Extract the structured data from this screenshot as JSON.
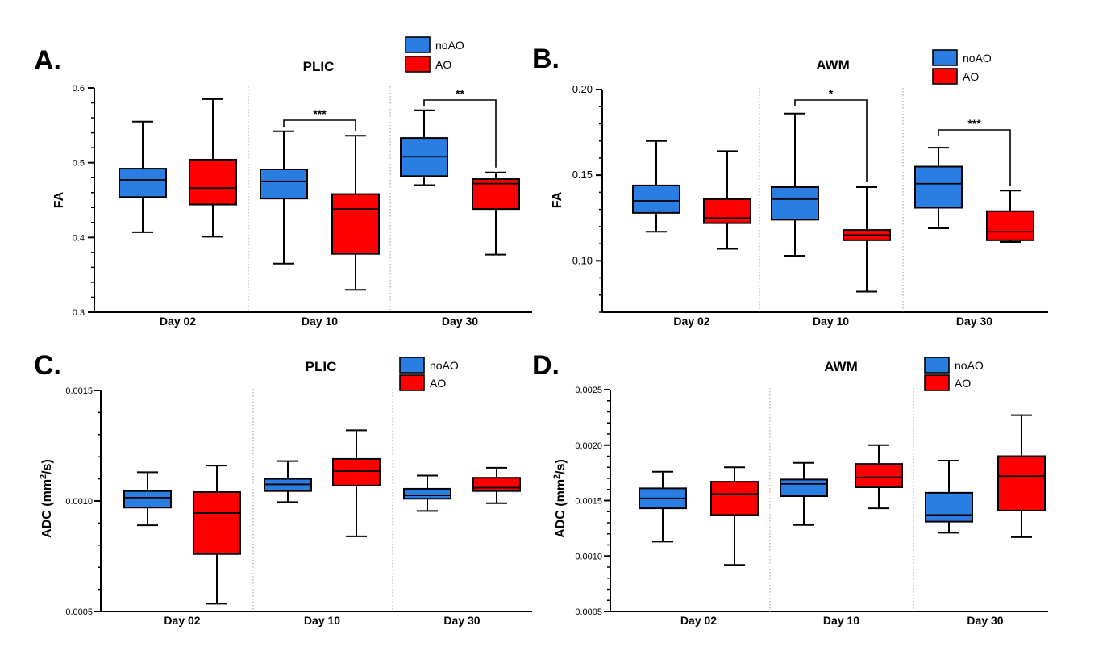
{
  "colors": {
    "noAO": "#2a7de1",
    "AO": "#ff0000",
    "axis": "#000000",
    "separator": "#9a9a9a"
  },
  "chart_data": [
    {
      "type": "box",
      "panel_letter": "A.",
      "title": "PLIC",
      "ylabel": "FA",
      "xlabel": "",
      "ylim": [
        0.3,
        0.6
      ],
      "yticks": [
        0.3,
        0.4,
        0.5,
        0.6
      ],
      "ytick_labels": [
        "0.3",
        "0.4",
        "0.5",
        "0.6"
      ],
      "minor_step": 0.02,
      "categories": [
        "Day 02",
        "Day 10",
        "Day 30"
      ],
      "legend": {
        "placement": "top-center",
        "entries": [
          "noAO",
          "AO"
        ]
      },
      "series": [
        {
          "name": "noAO",
          "boxes": [
            {
              "min": 0.407,
              "q1": 0.454,
              "median": 0.477,
              "q3": 0.492,
              "max": 0.555
            },
            {
              "min": 0.365,
              "q1": 0.452,
              "median": 0.475,
              "q3": 0.491,
              "max": 0.542
            },
            {
              "min": 0.47,
              "q1": 0.482,
              "median": 0.508,
              "q3": 0.533,
              "max": 0.57
            }
          ]
        },
        {
          "name": "AO",
          "boxes": [
            {
              "min": 0.401,
              "q1": 0.444,
              "median": 0.466,
              "q3": 0.504,
              "max": 0.585
            },
            {
              "min": 0.33,
              "q1": 0.378,
              "median": 0.438,
              "q3": 0.458,
              "max": 0.536
            },
            {
              "min": 0.377,
              "q1": 0.438,
              "median": 0.472,
              "q3": 0.478,
              "max": 0.487
            }
          ]
        }
      ],
      "annotations": [
        {
          "category": "Day 10",
          "text": "***"
        },
        {
          "category": "Day 30",
          "text": "**"
        }
      ]
    },
    {
      "type": "box",
      "panel_letter": "B.",
      "title": "AWM",
      "ylabel": "FA",
      "xlabel": "",
      "ylim": [
        0.07,
        0.2
      ],
      "yticks": [
        0.1,
        0.15,
        0.2
      ],
      "ytick_labels": [
        "0.10",
        "0.15",
        "0.20"
      ],
      "minor_step": 0.01,
      "categories": [
        "Day 02",
        "Day 10",
        "Day 30"
      ],
      "legend": {
        "placement": "top-right",
        "entries": [
          "noAO",
          "AO"
        ]
      },
      "series": [
        {
          "name": "noAO",
          "boxes": [
            {
              "min": 0.117,
              "q1": 0.128,
              "median": 0.135,
              "q3": 0.144,
              "max": 0.17
            },
            {
              "min": 0.103,
              "q1": 0.124,
              "median": 0.136,
              "q3": 0.143,
              "max": 0.186
            },
            {
              "min": 0.119,
              "q1": 0.131,
              "median": 0.145,
              "q3": 0.155,
              "max": 0.166
            }
          ]
        },
        {
          "name": "AO",
          "boxes": [
            {
              "min": 0.107,
              "q1": 0.122,
              "median": 0.125,
              "q3": 0.136,
              "max": 0.164
            },
            {
              "min": 0.082,
              "q1": 0.112,
              "median": 0.115,
              "q3": 0.118,
              "max": 0.143
            },
            {
              "min": 0.111,
              "q1": 0.112,
              "median": 0.117,
              "q3": 0.129,
              "max": 0.141
            }
          ]
        }
      ],
      "annotations": [
        {
          "category": "Day 10",
          "text": "*"
        },
        {
          "category": "Day 30",
          "text": "***"
        }
      ]
    },
    {
      "type": "box",
      "panel_letter": "C.",
      "title": "PLIC",
      "ylabel": "ADC (mm²/s)",
      "xlabel": "",
      "ylim": [
        0.0005,
        0.0015
      ],
      "yticks": [
        0.0005,
        0.001,
        0.0015
      ],
      "ytick_labels": [
        "0.0005",
        "0.0010",
        "0.0015"
      ],
      "minor_step": 0.0001,
      "categories": [
        "Day 02",
        "Day 10",
        "Day 30"
      ],
      "legend": {
        "placement": "top-right",
        "entries": [
          "noAO",
          "AO"
        ]
      },
      "series": [
        {
          "name": "noAO",
          "boxes": [
            {
              "min": 0.00089,
              "q1": 0.00097,
              "median": 0.001015,
              "q3": 0.001045,
              "max": 0.00113
            },
            {
              "min": 0.000995,
              "q1": 0.001045,
              "median": 0.001075,
              "q3": 0.0011,
              "max": 0.00118
            },
            {
              "min": 0.000955,
              "q1": 0.00101,
              "median": 0.001025,
              "q3": 0.001055,
              "max": 0.001115
            }
          ]
        },
        {
          "name": "AO",
          "boxes": [
            {
              "min": 0.000535,
              "q1": 0.00076,
              "median": 0.000945,
              "q3": 0.00104,
              "max": 0.00116
            },
            {
              "min": 0.00084,
              "q1": 0.00107,
              "median": 0.001135,
              "q3": 0.00119,
              "max": 0.00132
            },
            {
              "min": 0.00099,
              "q1": 0.001045,
              "median": 0.00106,
              "q3": 0.001105,
              "max": 0.00115
            }
          ]
        }
      ],
      "annotations": []
    },
    {
      "type": "box",
      "panel_letter": "D.",
      "title": "AWM",
      "ylabel": "ADC (mm²/s)",
      "xlabel": "",
      "ylim": [
        0.0005,
        0.0025
      ],
      "yticks": [
        0.0005,
        0.001,
        0.0015,
        0.002,
        0.0025
      ],
      "ytick_labels": [
        "0.0005",
        "0.0010",
        "0.0015",
        "0.0020",
        "0.0025"
      ],
      "minor_step": 0.0001,
      "categories": [
        "Day 02",
        "Day 10",
        "Day 30"
      ],
      "legend": {
        "placement": "top-right",
        "entries": [
          "noAO",
          "AO"
        ]
      },
      "series": [
        {
          "name": "noAO",
          "boxes": [
            {
              "min": 0.00113,
              "q1": 0.00143,
              "median": 0.00152,
              "q3": 0.00161,
              "max": 0.00176
            },
            {
              "min": 0.00128,
              "q1": 0.00154,
              "median": 0.00165,
              "q3": 0.00169,
              "max": 0.00184
            },
            {
              "min": 0.00121,
              "q1": 0.00131,
              "median": 0.00137,
              "q3": 0.00157,
              "max": 0.00186
            }
          ]
        },
        {
          "name": "AO",
          "boxes": [
            {
              "min": 0.00092,
              "q1": 0.00137,
              "median": 0.00156,
              "q3": 0.00167,
              "max": 0.0018
            },
            {
              "min": 0.00143,
              "q1": 0.00162,
              "median": 0.00171,
              "q3": 0.00183,
              "max": 0.002
            },
            {
              "min": 0.00117,
              "q1": 0.00141,
              "median": 0.00172,
              "q3": 0.0019,
              "max": 0.00227
            }
          ]
        }
      ],
      "annotations": []
    }
  ]
}
